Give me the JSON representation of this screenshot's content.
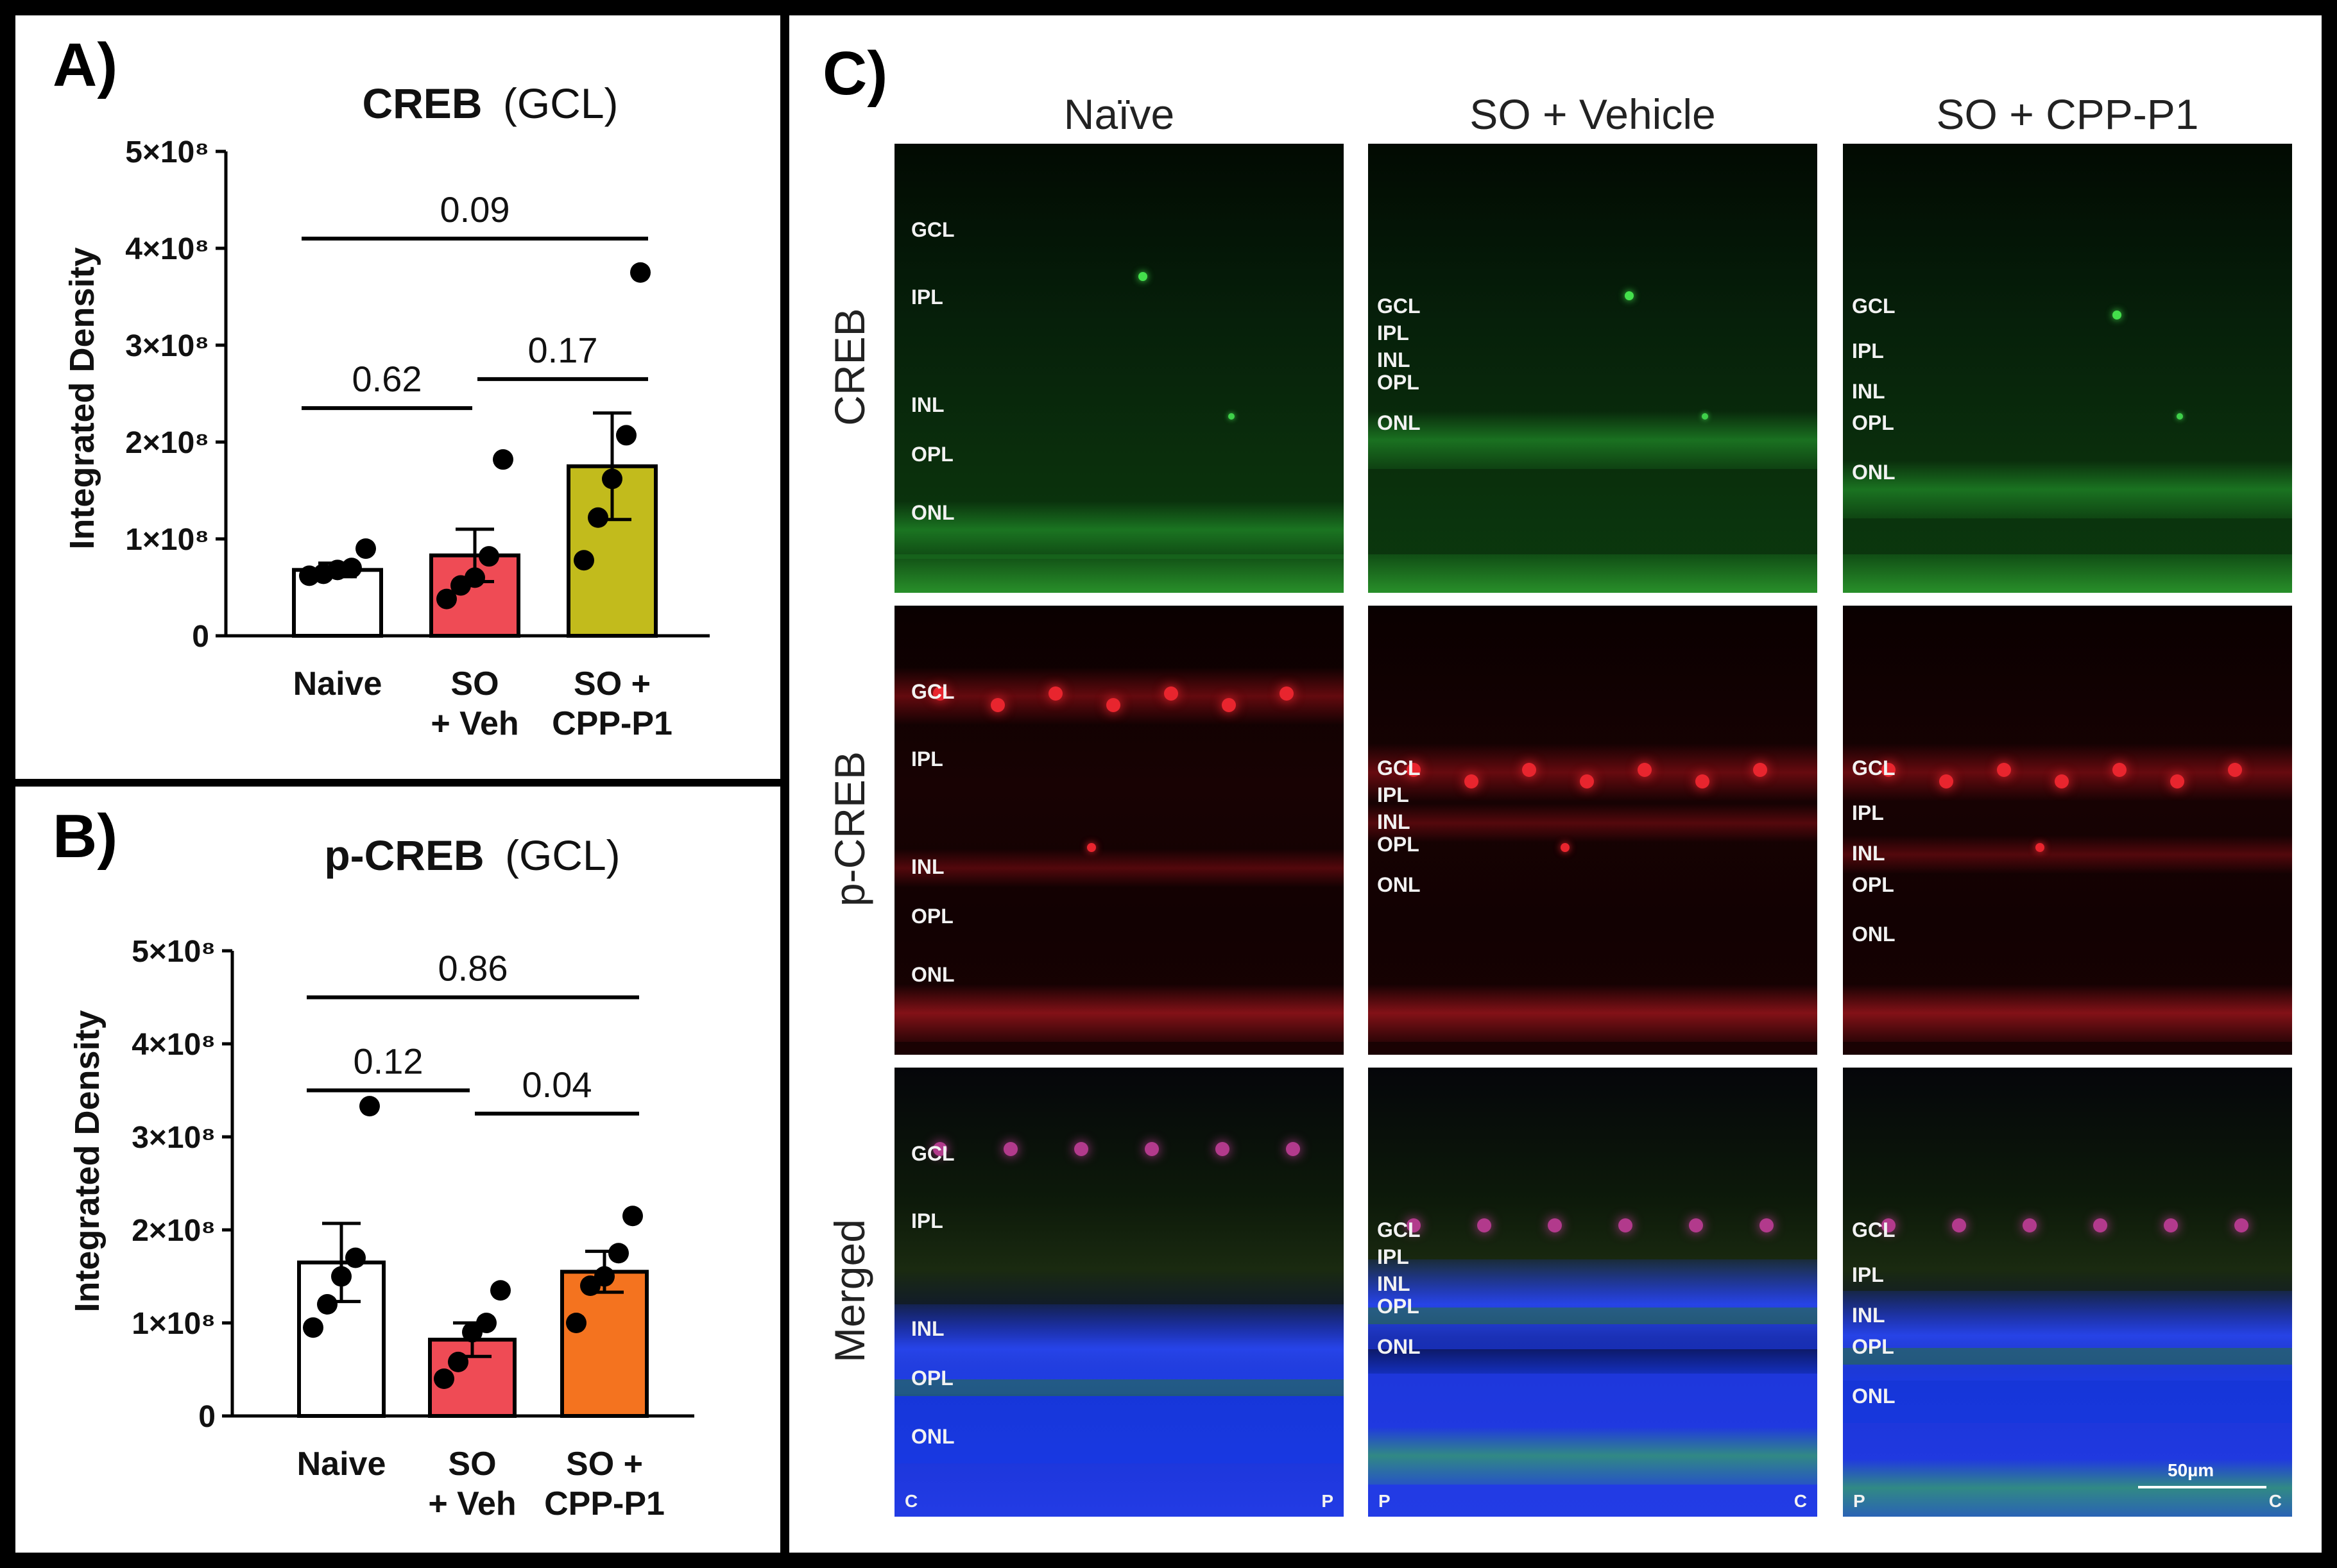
{
  "panelA": {
    "letter": "A)",
    "title_bold": "CREB",
    "title_rest": "(GCL)",
    "ylabel": "Integrated Density",
    "chart_data": {
      "type": "bar",
      "title": "CREB (GCL)",
      "ylabel": "Integrated Density",
      "ylim": [
        0,
        500000000
      ],
      "yticks": [
        {
          "value": 0,
          "label": "0"
        },
        {
          "value": 100000000,
          "label": "1×10⁸"
        },
        {
          "value": 200000000,
          "label": "2×10⁸"
        },
        {
          "value": 300000000,
          "label": "3×10⁸"
        },
        {
          "value": 400000000,
          "label": "4×10⁸"
        },
        {
          "value": 500000000,
          "label": "5×10⁸"
        }
      ],
      "categories": [
        [
          "Naive"
        ],
        [
          "SO",
          "+ Veh"
        ],
        [
          "SO +",
          "CPP-P1"
        ]
      ],
      "colors": [
        "#ffffff",
        "#ef4b55",
        "#c2bb1c"
      ],
      "means": [
        68000000,
        83000000,
        175000000
      ],
      "sem": [
        7000000,
        27000000,
        55000000
      ],
      "points": [
        [
          62000000,
          64000000,
          68000000,
          70000000,
          90000000
        ],
        [
          38000000,
          52000000,
          60000000,
          82000000,
          182000000
        ],
        [
          78000000,
          122000000,
          162000000,
          207000000,
          375000000
        ]
      ],
      "brackets": [
        {
          "from": 0,
          "to": 1,
          "y": 235000000,
          "label": "0.62"
        },
        {
          "from": 1,
          "to": 2,
          "y": 265000000,
          "label": "0.17"
        },
        {
          "from": 0,
          "to": 2,
          "y": 410000000,
          "label": "0.09"
        }
      ]
    }
  },
  "panelB": {
    "letter": "B)",
    "title_bold": "p-CREB",
    "title_rest": "(GCL)",
    "ylabel": "Integrated Density",
    "chart_data": {
      "type": "bar",
      "title": "p-CREB (GCL)",
      "ylabel": "Integrated Density",
      "ylim": [
        0,
        500000000
      ],
      "yticks": [
        {
          "value": 0,
          "label": "0"
        },
        {
          "value": 100000000,
          "label": "1×10⁸"
        },
        {
          "value": 200000000,
          "label": "2×10⁸"
        },
        {
          "value": 300000000,
          "label": "3×10⁸"
        },
        {
          "value": 400000000,
          "label": "4×10⁸"
        },
        {
          "value": 500000000,
          "label": "5×10⁸"
        }
      ],
      "categories": [
        [
          "Naive"
        ],
        [
          "SO",
          "+ Veh"
        ],
        [
          "SO +",
          "CPP-P1"
        ]
      ],
      "colors": [
        "#ffffff",
        "#ef4b55",
        "#f4731f"
      ],
      "means": [
        165000000,
        82000000,
        155000000
      ],
      "sem": [
        42000000,
        18000000,
        22000000
      ],
      "points": [
        [
          95000000,
          120000000,
          150000000,
          170000000,
          333000000
        ],
        [
          40000000,
          58000000,
          90000000,
          100000000,
          135000000
        ],
        [
          100000000,
          140000000,
          150000000,
          175000000,
          215000000
        ]
      ],
      "brackets": [
        {
          "from": 0,
          "to": 1,
          "y": 350000000,
          "label": "0.12"
        },
        {
          "from": 1,
          "to": 2,
          "y": 325000000,
          "label": "0.04"
        },
        {
          "from": 0,
          "to": 2,
          "y": 450000000,
          "label": "0.86"
        }
      ]
    }
  },
  "panelC": {
    "letter": "C)",
    "columns": [
      "Naïve",
      "SO + Vehicle",
      "SO + CPP-P1"
    ],
    "rows": [
      "CREB",
      "p-CREB",
      "Merged"
    ],
    "scale": "50µm",
    "corners": [
      [
        "C",
        "P"
      ],
      [
        "P",
        "C"
      ],
      [
        "P",
        "C"
      ]
    ],
    "layers": [
      "GCL",
      "IPL",
      "INL",
      "OPL",
      "ONL"
    ]
  }
}
